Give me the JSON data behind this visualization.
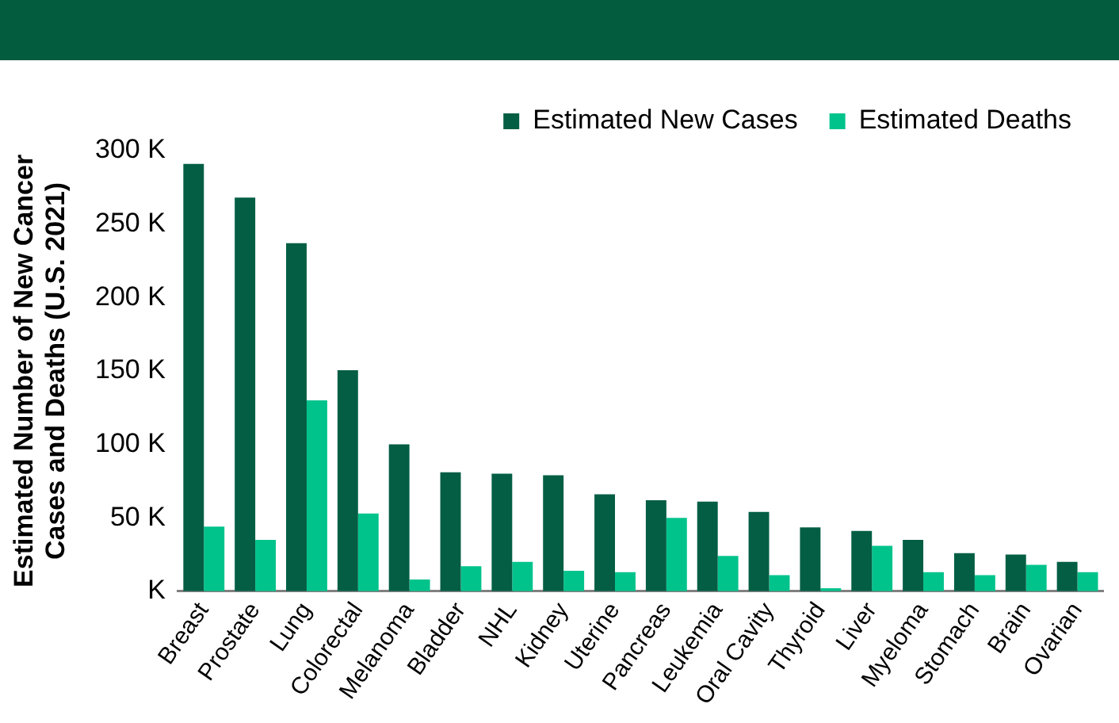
{
  "chart_data": {
    "type": "bar",
    "ylabel": "Estimated Number of New Cancer Cases and Deaths (U.S. 2021)",
    "categories": [
      "Breast",
      "Prostate",
      "Lung",
      "Colorectal",
      "Melanoma",
      "Bladder",
      "NHL",
      "Kidney",
      "Uterine",
      "Pancreas",
      "Leukemia",
      "Oral Cavity",
      "Thyroid",
      "Liver",
      "Myeloma",
      "Stomach",
      "Brain",
      "Ovarian"
    ],
    "series": [
      {
        "name": "Estimated New Cases",
        "color": "#035e44",
        "values": [
          291,
          268,
          237,
          150.5,
          100,
          81,
          80,
          79,
          66,
          62,
          61,
          54,
          43.5,
          41,
          35,
          26,
          25,
          20
        ]
      },
      {
        "name": "Estimated Deaths",
        "color": "#00c38c",
        "values": [
          44,
          35,
          130,
          53,
          8,
          17,
          20,
          14,
          13,
          50,
          24,
          11,
          2,
          31,
          13,
          11,
          18,
          13
        ]
      }
    ],
    "ylim": [
      0,
      300
    ],
    "yticks": [
      {
        "value": 0,
        "label": "K"
      },
      {
        "value": 50,
        "label": "50 K"
      },
      {
        "value": 100,
        "label": "100 K"
      },
      {
        "value": 150,
        "label": "150 K"
      },
      {
        "value": 200,
        "label": "200 K"
      },
      {
        "value": 250,
        "label": "250 K"
      },
      {
        "value": 300,
        "label": "300 K"
      }
    ],
    "grid": false,
    "legend": "top right"
  }
}
